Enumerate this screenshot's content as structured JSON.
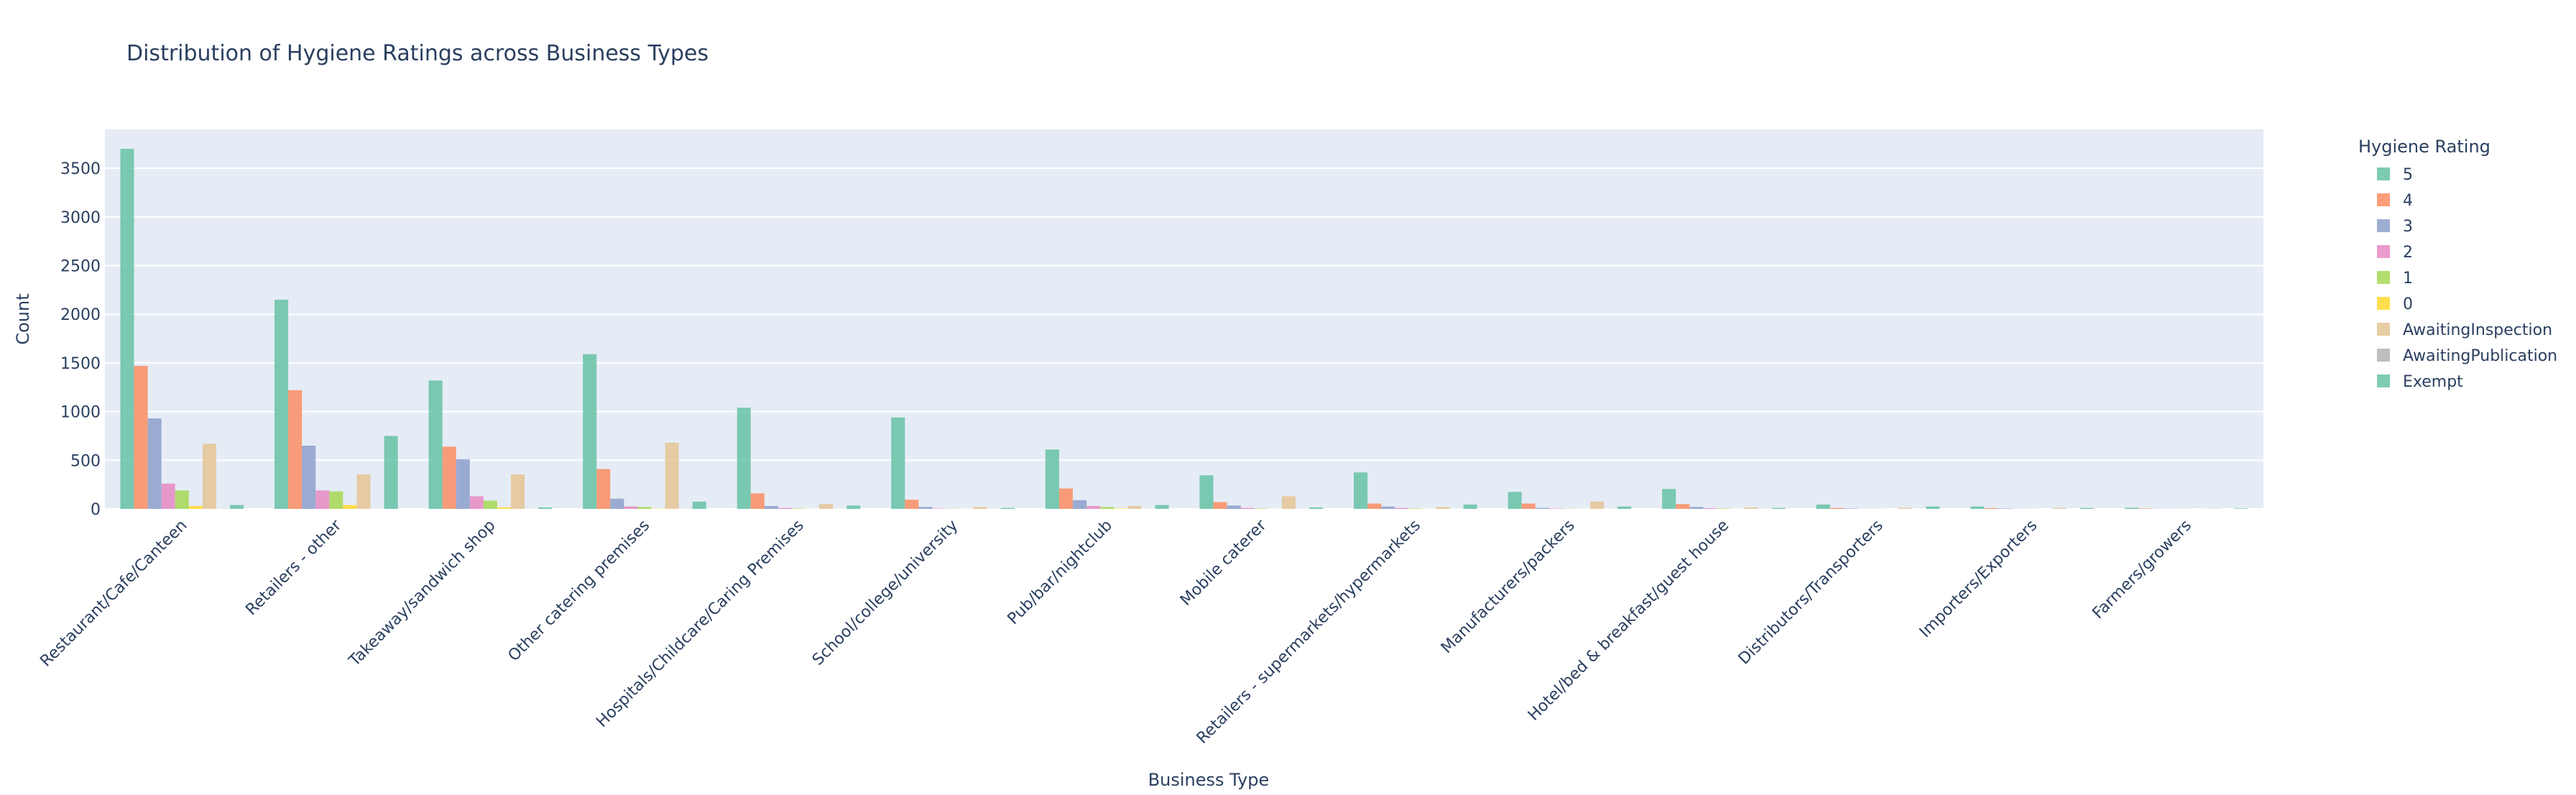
{
  "chart_data": {
    "type": "bar",
    "title": "Distribution of Hygiene Ratings across Business Types",
    "xlabel": "Business Type",
    "ylabel": "Count",
    "ylim": [
      0,
      3900
    ],
    "yticks": [
      0,
      500,
      1000,
      1500,
      2000,
      2500,
      3000,
      3500
    ],
    "grid": true,
    "legend_title": "Hygiene Rating",
    "legend_position": "right",
    "categories": [
      "Restaurant/Cafe/Canteen",
      "Retailers - other",
      "Takeaway/sandwich shop",
      "Other catering premises",
      "Hospitals/Childcare/Caring Premises",
      "School/college/university",
      "Pub/bar/nightclub",
      "Mobile caterer",
      "Retailers - supermarkets/hypermarkets",
      "Manufacturers/packers",
      "Hotel/bed & breakfast/guest house",
      "Distributors/Transporters",
      "Importers/Exporters",
      "Farmers/growers"
    ],
    "series": [
      {
        "name": "5",
        "color": "#66c2a5",
        "values": [
          3700,
          2150,
          1320,
          1590,
          1040,
          940,
          610,
          345,
          375,
          175,
          205,
          45,
          25,
          12
        ]
      },
      {
        "name": "4",
        "color": "#fc8d62",
        "values": [
          1470,
          1220,
          640,
          410,
          160,
          95,
          210,
          70,
          55,
          55,
          50,
          10,
          8,
          5
        ]
      },
      {
        "name": "3",
        "color": "#8da0cb",
        "values": [
          930,
          650,
          510,
          105,
          30,
          20,
          90,
          35,
          25,
          10,
          20,
          5,
          5,
          2
        ]
      },
      {
        "name": "2",
        "color": "#e78ac3",
        "values": [
          260,
          190,
          130,
          25,
          10,
          5,
          30,
          10,
          10,
          5,
          8,
          2,
          2,
          1
        ]
      },
      {
        "name": "1",
        "color": "#a6d854",
        "values": [
          190,
          180,
          85,
          20,
          5,
          3,
          20,
          5,
          5,
          3,
          5,
          1,
          1,
          1
        ]
      },
      {
        "name": "0",
        "color": "#ffd92f",
        "values": [
          30,
          40,
          15,
          3,
          1,
          1,
          5,
          1,
          1,
          1,
          1,
          0,
          0,
          0
        ]
      },
      {
        "name": "AwaitingInspection",
        "color": "#e5c494",
        "values": [
          670,
          355,
          355,
          680,
          50,
          20,
          30,
          130,
          20,
          75,
          15,
          10,
          10,
          3
        ]
      },
      {
        "name": "AwaitingPublication",
        "color": "#b3b3b3",
        "values": [
          3,
          2,
          2,
          2,
          1,
          1,
          1,
          1,
          1,
          1,
          1,
          0,
          0,
          0
        ]
      },
      {
        "name": "Exempt",
        "color": "#66c2a5",
        "values": [
          40,
          750,
          15,
          75,
          35,
          10,
          40,
          15,
          45,
          25,
          10,
          25,
          10,
          5
        ]
      }
    ]
  }
}
